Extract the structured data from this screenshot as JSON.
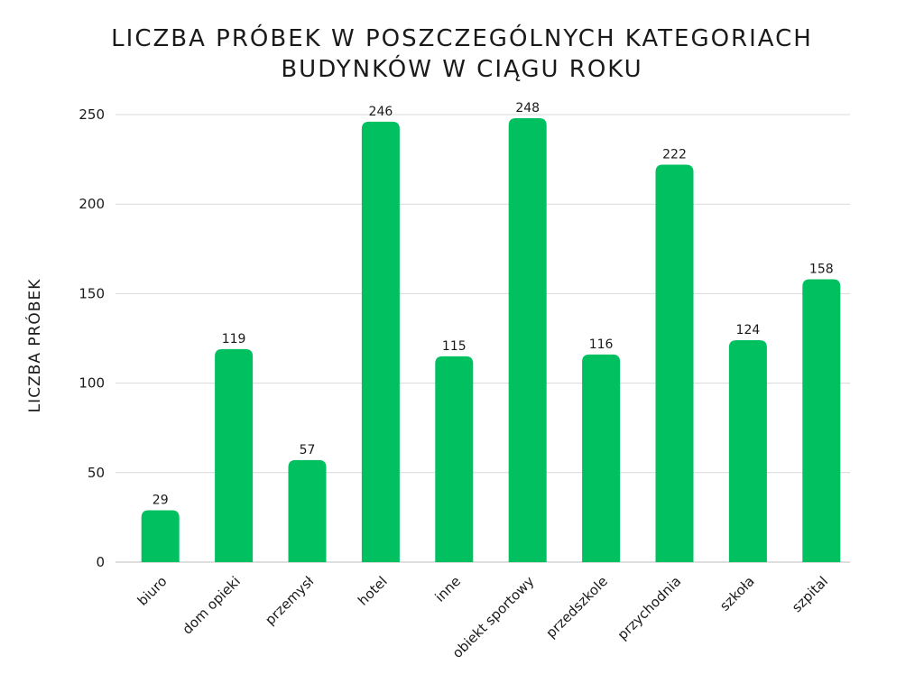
{
  "chart_data": {
    "type": "bar",
    "title_lines": [
      "LICZBA PRÓBEK W POSZCZEGÓLNYCH KATEGORIACH",
      "BUDYNKÓW W CIĄGU ROKU"
    ],
    "ylabel": "LICZBA PRÓBEK",
    "xlabel": "",
    "categories": [
      "biuro",
      "dom opieki",
      "przemysł",
      "hotel",
      "inne",
      "obiekt sportowy",
      "przedszkole",
      "przychodnia",
      "szkoła",
      "szpital"
    ],
    "values": [
      29,
      119,
      57,
      246,
      115,
      248,
      116,
      222,
      124,
      158
    ],
    "ylim": [
      0,
      250
    ],
    "yticks": [
      0,
      50,
      100,
      150,
      200,
      250
    ],
    "grid": true,
    "bar_color": "#00c060",
    "grid_color": "#d9d9d9"
  }
}
